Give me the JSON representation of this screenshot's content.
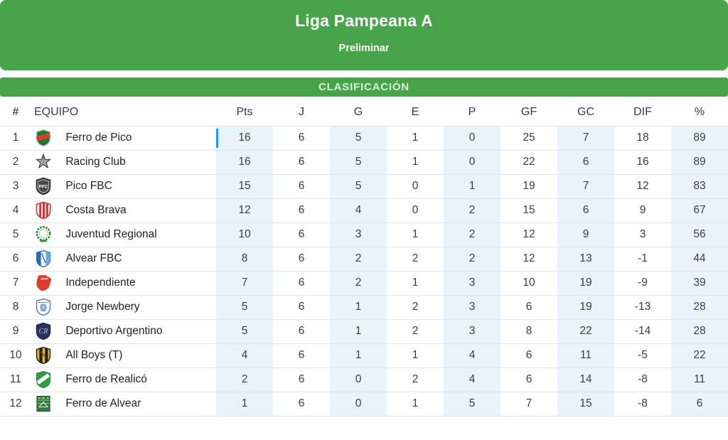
{
  "header": {
    "title": "Liga Pampeana A",
    "subtitle": "Preliminar"
  },
  "section": {
    "label": "CLASIFICACIÓN"
  },
  "table": {
    "columns": [
      "#",
      "EQUIPO",
      "Pts",
      "J",
      "G",
      "E",
      "P",
      "GF",
      "GC",
      "DIF",
      "%"
    ],
    "rows": [
      {
        "pos": "1",
        "team": "Ferro de Pico",
        "crest": "ferro-de-pico",
        "pts": "16",
        "j": "6",
        "g": "5",
        "e": "1",
        "p": "0",
        "gf": "25",
        "gc": "7",
        "dif": "18",
        "pct": "89",
        "selected": true
      },
      {
        "pos": "2",
        "team": "Racing Club",
        "crest": "racing-club",
        "pts": "16",
        "j": "6",
        "g": "5",
        "e": "1",
        "p": "0",
        "gf": "22",
        "gc": "6",
        "dif": "16",
        "pct": "89",
        "selected": false
      },
      {
        "pos": "3",
        "team": "Pico FBC",
        "crest": "pico-fbc",
        "pts": "15",
        "j": "6",
        "g": "5",
        "e": "0",
        "p": "1",
        "gf": "19",
        "gc": "7",
        "dif": "12",
        "pct": "83",
        "selected": false
      },
      {
        "pos": "4",
        "team": "Costa Brava",
        "crest": "costa-brava",
        "pts": "12",
        "j": "6",
        "g": "4",
        "e": "0",
        "p": "2",
        "gf": "15",
        "gc": "6",
        "dif": "9",
        "pct": "67",
        "selected": false
      },
      {
        "pos": "5",
        "team": "Juventud Regional",
        "crest": "juventud-regional",
        "pts": "10",
        "j": "6",
        "g": "3",
        "e": "1",
        "p": "2",
        "gf": "12",
        "gc": "9",
        "dif": "3",
        "pct": "56",
        "selected": false
      },
      {
        "pos": "6",
        "team": "Alvear FBC",
        "crest": "alvear-fbc",
        "pts": "8",
        "j": "6",
        "g": "2",
        "e": "2",
        "p": "2",
        "gf": "12",
        "gc": "13",
        "dif": "-1",
        "pct": "44",
        "selected": false
      },
      {
        "pos": "7",
        "team": "Independiente",
        "crest": "independiente",
        "pts": "7",
        "j": "6",
        "g": "2",
        "e": "1",
        "p": "3",
        "gf": "10",
        "gc": "19",
        "dif": "-9",
        "pct": "39",
        "selected": false
      },
      {
        "pos": "8",
        "team": "Jorge Newbery",
        "crest": "jorge-newbery",
        "pts": "5",
        "j": "6",
        "g": "1",
        "e": "2",
        "p": "3",
        "gf": "6",
        "gc": "19",
        "dif": "-13",
        "pct": "28",
        "selected": false
      },
      {
        "pos": "9",
        "team": "Deportivo Argentino",
        "crest": "deportivo-argentino",
        "pts": "5",
        "j": "6",
        "g": "1",
        "e": "2",
        "p": "3",
        "gf": "8",
        "gc": "22",
        "dif": "-14",
        "pct": "28",
        "selected": false
      },
      {
        "pos": "10",
        "team": "All Boys (T)",
        "crest": "all-boys-t",
        "pts": "4",
        "j": "6",
        "g": "1",
        "e": "1",
        "p": "4",
        "gf": "6",
        "gc": "11",
        "dif": "-5",
        "pct": "22",
        "selected": false
      },
      {
        "pos": "11",
        "team": "Ferro de Realicó",
        "crest": "ferro-de-realico",
        "pts": "2",
        "j": "6",
        "g": "0",
        "e": "2",
        "p": "4",
        "gf": "6",
        "gc": "14",
        "dif": "-8",
        "pct": "11",
        "selected": false
      },
      {
        "pos": "12",
        "team": "Ferro de Alvear",
        "crest": "ferro-de-alvear",
        "pts": "1",
        "j": "6",
        "g": "0",
        "e": "1",
        "p": "5",
        "gf": "7",
        "gc": "15",
        "dif": "-8",
        "pct": "6",
        "selected": false
      }
    ]
  },
  "colors": {
    "brand_green": "#47a44b",
    "section_text": "#d9f0d9",
    "column_shade": "#e8f3fa",
    "selection_blue": "#2196f3",
    "hash_header": "#3d4a8f"
  }
}
